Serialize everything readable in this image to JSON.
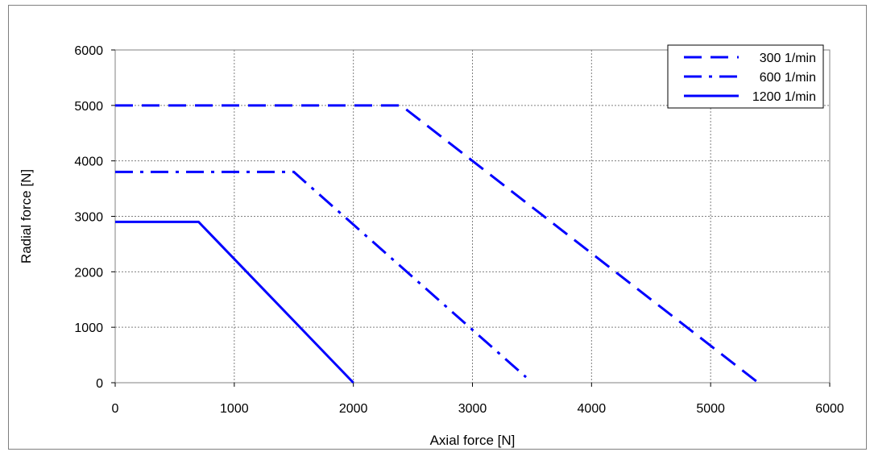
{
  "chart_data": {
    "type": "line",
    "title": "",
    "xlabel": "Axial force [N]",
    "ylabel": "Radial force [N]",
    "xlim": [
      0,
      6000
    ],
    "ylim": [
      0,
      6000
    ],
    "xticks": [
      0,
      1000,
      2000,
      3000,
      4000,
      5000,
      6000
    ],
    "yticks": [
      0,
      1000,
      2000,
      3000,
      4000,
      5000,
      6000
    ],
    "grid": true,
    "legend_position": "top-right",
    "series": [
      {
        "name": "300 1/min",
        "color": "#0000ff",
        "style": "dashed",
        "x": [
          0,
          2400,
          5400
        ],
        "y": [
          5000,
          5000,
          0
        ]
      },
      {
        "name": "600 1/min",
        "color": "#0000ff",
        "style": "dash-dot",
        "x": [
          0,
          1500,
          3450
        ],
        "y": [
          3800,
          3800,
          100
        ]
      },
      {
        "name": "1200 1/min",
        "color": "#0000ff",
        "style": "solid",
        "x": [
          0,
          700,
          2000
        ],
        "y": [
          2900,
          2900,
          0
        ]
      }
    ]
  }
}
